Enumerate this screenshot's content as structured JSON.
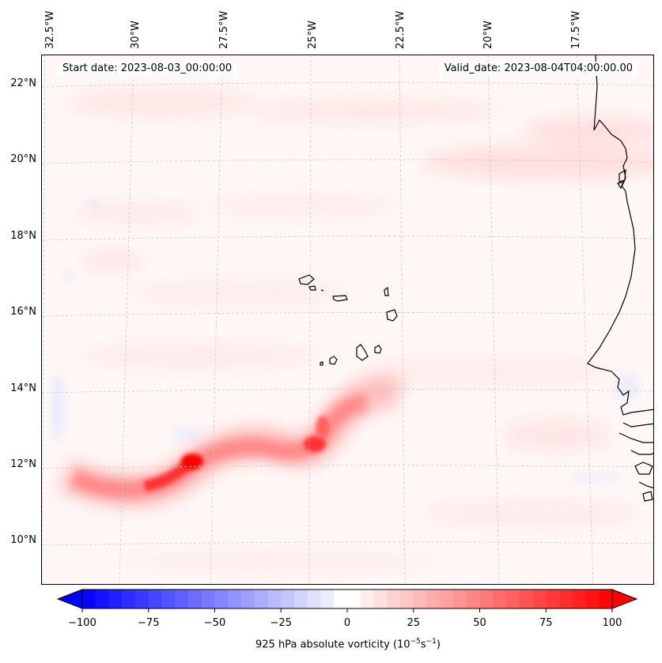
{
  "map": {
    "longitude_labels": [
      "32.5°W",
      "30°W",
      "27.5°W",
      "25°W",
      "22.5°W",
      "20°W",
      "17.5°W"
    ],
    "latitude_labels": [
      "22°N",
      "20°N",
      "18°N",
      "16°N",
      "14°N",
      "12°N",
      "10°N"
    ],
    "start_date": "Start date: 2023-08-03_00:00:00",
    "valid_date": "Valid_date: 2023-08-04T04:00:00.00",
    "colors": {
      "positive_max": "#ff0000",
      "negative_max": "#0000ff",
      "neutral": "#ffffff",
      "coastline": "#000000",
      "gridline": "#c8c8c8"
    }
  },
  "colorbar": {
    "min": -100,
    "max": 100,
    "ticks": [
      "−100",
      "−75",
      "−50",
      "−25",
      "0",
      "25",
      "50",
      "75",
      "100"
    ],
    "label": "925 hPa absolute vorticity (10",
    "label_exp1": "−5",
    "label_mid": "s",
    "label_exp2": "−1",
    "label_end": ")"
  },
  "chart_data": {
    "type": "heatmap",
    "title": "925 hPa absolute vorticity",
    "units": "10^-5 s^-1",
    "lon_range": [
      -33,
      -15
    ],
    "lat_range": [
      9,
      23
    ],
    "color_range": [
      -100,
      100
    ],
    "features": [
      {
        "name": "vorticity maximum",
        "lon": -28.3,
        "lat": 12.0,
        "value": 100
      },
      {
        "name": "secondary maximum",
        "lon": -25.0,
        "lat": 12.4,
        "value": 80
      },
      {
        "name": "coastal band",
        "lon": -17.5,
        "lat": 20.0,
        "value": 20
      }
    ]
  }
}
